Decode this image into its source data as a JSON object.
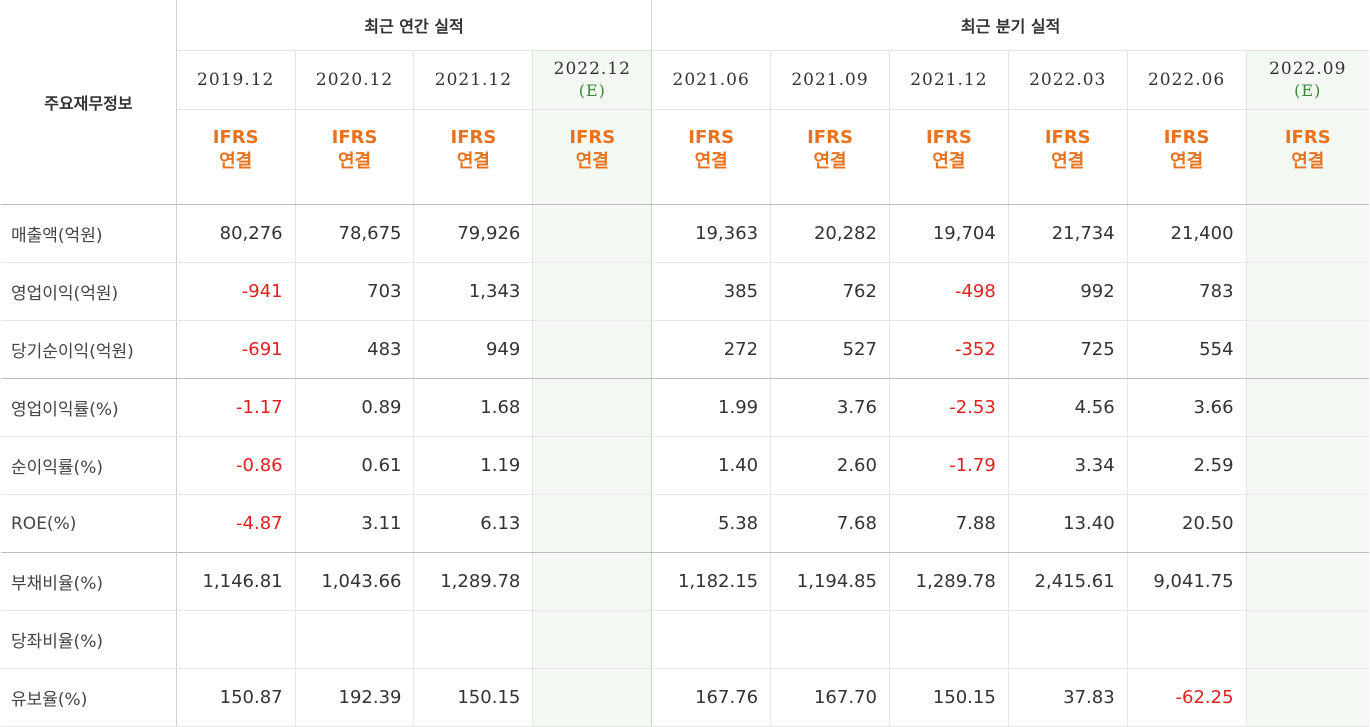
{
  "header": {
    "row_label": "주요재무정보",
    "annual_title": "최근 연간 실적",
    "quarter_title": "최근 분기 실적",
    "annual_periods": [
      "2019.12",
      "2020.12",
      "2021.12",
      "2022.12"
    ],
    "quarter_periods": [
      "2021.06",
      "2021.09",
      "2021.12",
      "2022.03",
      "2022.06",
      "2022.09"
    ],
    "estimate_mark": "(E)",
    "ifrs_line1": "IFRS",
    "ifrs_line2": "연결"
  },
  "rows": [
    {
      "label": "매출액(억원)",
      "values": [
        "80,276",
        "78,675",
        "79,926",
        "",
        "19,363",
        "20,282",
        "19,704",
        "21,734",
        "21,400",
        ""
      ]
    },
    {
      "label": "영업이익(억원)",
      "values": [
        "-941",
        "703",
        "1,343",
        "",
        "385",
        "762",
        "-498",
        "992",
        "783",
        ""
      ]
    },
    {
      "label": "당기순이익(억원)",
      "values": [
        "-691",
        "483",
        "949",
        "",
        "272",
        "527",
        "-352",
        "725",
        "554",
        ""
      ]
    },
    {
      "label": "영업이익률(%)",
      "values": [
        "-1.17",
        "0.89",
        "1.68",
        "",
        "1.99",
        "3.76",
        "-2.53",
        "4.56",
        "3.66",
        ""
      ]
    },
    {
      "label": "순이익률(%)",
      "values": [
        "-0.86",
        "0.61",
        "1.19",
        "",
        "1.40",
        "2.60",
        "-1.79",
        "3.34",
        "2.59",
        ""
      ]
    },
    {
      "label": "ROE(%)",
      "values": [
        "-4.87",
        "3.11",
        "6.13",
        "",
        "5.38",
        "7.68",
        "7.88",
        "13.40",
        "20.50",
        ""
      ]
    },
    {
      "label": "부채비율(%)",
      "values": [
        "1,146.81",
        "1,043.66",
        "1,289.78",
        "",
        "1,182.15",
        "1,194.85",
        "1,289.78",
        "2,415.61",
        "9,041.75",
        ""
      ]
    },
    {
      "label": "당좌비율(%)",
      "values": [
        "",
        "",
        "",
        "",
        "",
        "",
        "",
        "",
        "",
        ""
      ]
    },
    {
      "label": "유보율(%)",
      "values": [
        "150.87",
        "192.39",
        "150.15",
        "",
        "167.76",
        "167.70",
        "150.15",
        "37.83",
        "-62.25",
        ""
      ]
    }
  ],
  "colors": {
    "negative": "#e02020",
    "ifrs": "#e8721d",
    "estimate_bg": "#f3f8f2",
    "estimate_text": "#3a8a3a"
  }
}
